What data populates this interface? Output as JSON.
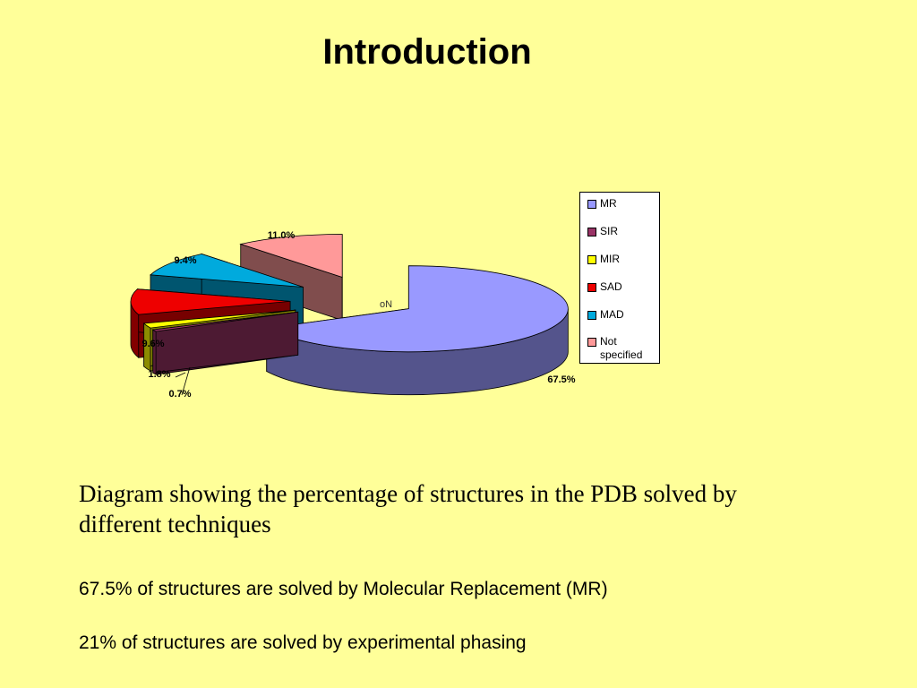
{
  "slide": {
    "title": "Introduction",
    "caption": "Diagram showing the percentage of structures in the PDB solved by different techniques",
    "facts": [
      "67.5% of structures are solved by Molecular Replacement (MR)",
      "21% of structures are solved by experimental phasing"
    ]
  },
  "chart_data": {
    "type": "pie",
    "style": "3d-exploded",
    "categories": [
      "MR",
      "SIR",
      "MIR",
      "SAD",
      "MAD",
      "Not specified"
    ],
    "values": [
      67.5,
      0.7,
      1.8,
      9.6,
      9.4,
      11.0
    ],
    "data_labels": [
      "67.5%",
      "0.7%",
      "1.8%",
      "9.6%",
      "9.4%",
      "11.0%"
    ],
    "colors": [
      "#9999ff",
      "#993366",
      "#ffff00",
      "#ee0000",
      "#00aadd",
      "#ff9999"
    ],
    "legend": {
      "placement": "right",
      "entries": [
        "MR",
        "SIR",
        "MIR",
        "SAD",
        "MAD",
        "Not specified"
      ]
    },
    "annotations": [
      "oN"
    ]
  }
}
